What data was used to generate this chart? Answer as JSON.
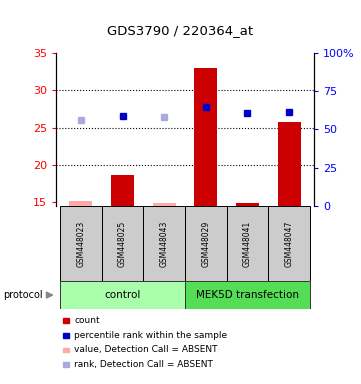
{
  "title": "GDS3790 / 220364_at",
  "samples": [
    "GSM448023",
    "GSM448025",
    "GSM448043",
    "GSM448029",
    "GSM448041",
    "GSM448047"
  ],
  "bar_values": [
    15.15,
    18.7,
    14.9,
    33.0,
    14.9,
    25.8
  ],
  "bar_absent": [
    true,
    false,
    true,
    false,
    false,
    false
  ],
  "rank_values": [
    26.0,
    26.6,
    26.4,
    27.8,
    26.9,
    27.1
  ],
  "rank_absent": [
    true,
    false,
    true,
    false,
    false,
    false
  ],
  "ylim_left": [
    14.5,
    35
  ],
  "ylim_right": [
    0,
    100
  ],
  "yticks_left": [
    15,
    20,
    25,
    30,
    35
  ],
  "ytick_labels_left": [
    "15",
    "20",
    "25",
    "30",
    "35"
  ],
  "yticks_right_vals": [
    0,
    25,
    50,
    75,
    100
  ],
  "ytick_labels_right": [
    "0",
    "25",
    "50",
    "75",
    "100%"
  ],
  "bar_color_present": "#cc0000",
  "bar_color_absent": "#ffaaaa",
  "rank_color_present": "#0000cc",
  "rank_color_absent": "#aaaadd",
  "ctrl_color": "#aaffaa",
  "mek_color": "#55dd55",
  "sample_box_color": "#cccccc",
  "legend_items": [
    {
      "label": "count",
      "color": "#cc0000"
    },
    {
      "label": "percentile rank within the sample",
      "color": "#0000cc"
    },
    {
      "label": "value, Detection Call = ABSENT",
      "color": "#ffaaaa"
    },
    {
      "label": "rank, Detection Call = ABSENT",
      "color": "#aaaadd"
    }
  ],
  "grid_lines": [
    20,
    25,
    30
  ],
  "bar_width": 0.55
}
